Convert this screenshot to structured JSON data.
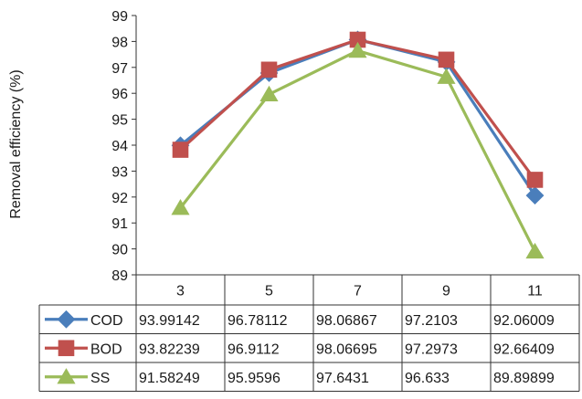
{
  "chart_data": {
    "type": "line",
    "ylabel": "Removal efficiency (%)",
    "ylim": [
      89,
      99
    ],
    "yticks": [
      89,
      90,
      91,
      92,
      93,
      94,
      95,
      96,
      97,
      98,
      99
    ],
    "categories": [
      "3",
      "5",
      "7",
      "9",
      "11"
    ],
    "grid": false,
    "legend": "data-table-left",
    "series": [
      {
        "name": "COD",
        "marker": "diamond",
        "color": "#4a7ebb",
        "values": [
          93.99142,
          96.78112,
          98.06867,
          97.2103,
          92.06009
        ],
        "labels": [
          "93.99142",
          "96.78112",
          "98.06867",
          "97.2103",
          "92.06009"
        ]
      },
      {
        "name": "BOD",
        "marker": "square",
        "color": "#c0504d",
        "values": [
          93.82239,
          96.9112,
          98.06695,
          97.2973,
          92.66409
        ],
        "labels": [
          "93.82239",
          "96.9112",
          "98.06695",
          "97.2973",
          "92.66409"
        ]
      },
      {
        "name": "SS",
        "marker": "triangle",
        "color": "#9bbb59",
        "values": [
          91.58249,
          95.9596,
          97.6431,
          96.633,
          89.89899
        ],
        "labels": [
          "91.58249",
          "95.9596",
          "97.6431",
          "96.633",
          "89.89899"
        ]
      }
    ]
  }
}
